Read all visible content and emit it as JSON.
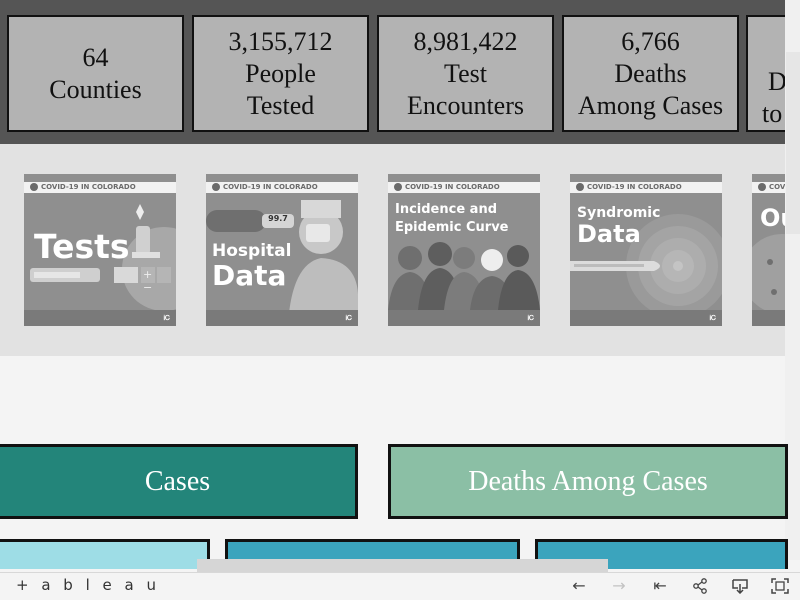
{
  "stats": [
    {
      "value": "64",
      "label": "Counties"
    },
    {
      "value": "3,155,712",
      "label_line1": "People",
      "label_line2": "Tested"
    },
    {
      "value": "8,981,422",
      "label_line1": "Test",
      "label_line2": "Encounters"
    },
    {
      "value": "6,766",
      "label_line1": "Deaths",
      "label_line2": "Among Cases"
    },
    {
      "line1": "D",
      "line2": "to"
    }
  ],
  "tiles": [
    {
      "header": "COVID-19 IN COLORADO",
      "title": "Tests",
      "symbols": "+ −"
    },
    {
      "header": "COVID-19 IN COLORADO",
      "title_line1": "Hospital",
      "title_line2": "Data",
      "reading": "99.7"
    },
    {
      "header": "COVID-19 IN COLORADO",
      "title_line1": "Incidence and",
      "title_line2": "Epidemic Curve"
    },
    {
      "header": "COVID-19 IN COLORADO",
      "title_line1": "Syndromic",
      "title_line2": "Data"
    },
    {
      "header": "COVID-19 IN COLORADO",
      "title": "Ou"
    }
  ],
  "tile_logo": "ᎥᏟ",
  "buttons": [
    {
      "label": "Cases",
      "color": "#23857a"
    },
    {
      "label": "Deaths Among Cases",
      "color": "#8bbfa5"
    }
  ],
  "bottom_colors": [
    "#9edde6",
    "#3ba4bd",
    "#3ba4bd"
  ],
  "toolbar": {
    "logo_text": "+ a b l e a u",
    "icons": [
      "undo-icon",
      "redo-icon",
      "revert-icon",
      "share-icon",
      "download-icon",
      "fullscreen-icon"
    ]
  }
}
